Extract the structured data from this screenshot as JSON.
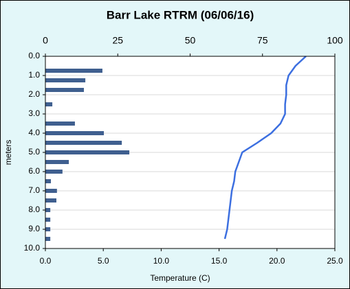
{
  "chart_data": {
    "type": "combo",
    "title": "Barr Lake RTRM (06/06/16)",
    "xlabel": "Temperature (C)",
    "ylabel": "meters",
    "ylim": [
      0,
      10
    ],
    "y_inverted": true,
    "yticks": [
      {
        "value": 0,
        "label": "0.0"
      },
      {
        "value": 1,
        "label": "1.0"
      },
      {
        "value": 2,
        "label": "2.0"
      },
      {
        "value": 3,
        "label": "3.0"
      },
      {
        "value": 4,
        "label": "4.0"
      },
      {
        "value": 5,
        "label": "5.0"
      },
      {
        "value": 6,
        "label": "6.0"
      },
      {
        "value": 7,
        "label": "7.0"
      },
      {
        "value": 8,
        "label": "8.0"
      },
      {
        "value": 9,
        "label": "9.0"
      },
      {
        "value": 10,
        "label": "10.0"
      }
    ],
    "xlim": [
      0,
      25
    ],
    "xticks": [
      {
        "value": 0,
        "label": "0.0"
      },
      {
        "value": 5,
        "label": "5.0"
      },
      {
        "value": 10,
        "label": "10.0"
      },
      {
        "value": 15,
        "label": "15.0"
      },
      {
        "value": 20,
        "label": "20.0"
      },
      {
        "value": 25,
        "label": "25.0"
      }
    ],
    "x2lim": [
      0,
      100
    ],
    "x2ticks": [
      0,
      25,
      50,
      75,
      100
    ],
    "grid": true,
    "bars": {
      "color": "#3f5f8f",
      "axis": "x2",
      "y": [
        0.75,
        1.25,
        1.75,
        2.5,
        3.5,
        4.0,
        4.5,
        5.0,
        5.5,
        6.0,
        6.5,
        7.0,
        7.5,
        8.0,
        8.5,
        9.0,
        9.5
      ],
      "values": [
        19.7,
        13.8,
        13.3,
        2.4,
        10.2,
        20.2,
        26.4,
        29,
        8.1,
        5.9,
        1.9,
        4,
        3.8,
        1.7,
        1.7,
        1.7,
        1.7
      ]
    },
    "line": {
      "color": "#3c6fe0",
      "axis": "x",
      "y": [
        0,
        0.5,
        1.0,
        1.5,
        2.0,
        2.5,
        3.0,
        3.5,
        4.0,
        4.5,
        5.0,
        5.5,
        6.0,
        6.5,
        7.0,
        7.5,
        8.0,
        8.5,
        9.0,
        9.5
      ],
      "values": [
        22.5,
        21.6,
        21.0,
        20.8,
        20.8,
        20.7,
        20.7,
        20.3,
        19.5,
        18.3,
        17.0,
        16.7,
        16.4,
        16.3,
        16.1,
        16.0,
        15.9,
        15.8,
        15.7,
        15.5
      ]
    }
  }
}
